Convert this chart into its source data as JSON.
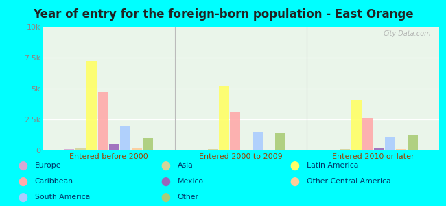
{
  "title": "Year of entry for the foreign-born population - East Orange",
  "categories": [
    "Entered before 2000",
    "Entered 2000 to 2009",
    "Entered 2010 or later"
  ],
  "series_order": [
    "Europe",
    "Asia",
    "Latin America",
    "Caribbean",
    "Mexico",
    "South America",
    "Other Central America",
    "Other"
  ],
  "series": {
    "Europe": [
      100,
      50,
      50
    ],
    "Asia": [
      200,
      100,
      100
    ],
    "Latin America": [
      7200,
      5200,
      4100
    ],
    "Caribbean": [
      4700,
      3100,
      2600
    ],
    "Mexico": [
      550,
      50,
      200
    ],
    "South America": [
      2000,
      1500,
      1100
    ],
    "Other Central America": [
      150,
      50,
      100
    ],
    "Other": [
      1000,
      1450,
      1300
    ]
  },
  "colors": {
    "Europe": "#d4a8d4",
    "Asia": "#d4d49a",
    "Latin America": "#ffff66",
    "Caribbean": "#ffaaaa",
    "Mexico": "#9966bb",
    "South America": "#aaccff",
    "Other Central America": "#ffcc99",
    "Other": "#aacc77"
  },
  "ylim": [
    0,
    10000
  ],
  "yticks": [
    0,
    2500,
    5000,
    7500,
    10000
  ],
  "ytick_labels": [
    "0",
    "2.5k",
    "5k",
    "7.5k",
    "10k"
  ],
  "background_color": "#00ffff",
  "plot_bg": "#eaf5ea",
  "title_fontsize": 12,
  "title_color": "#222222",
  "tick_label_color": "#994400",
  "ytick_color": "#888888",
  "watermark": "City-Data.com",
  "legend_layout": [
    [
      "Europe",
      "Caribbean",
      "South America"
    ],
    [
      "Asia",
      "Mexico",
      "Other"
    ],
    [
      "Latin America",
      "Other Central America"
    ]
  ],
  "legend_text_color": "#003366"
}
